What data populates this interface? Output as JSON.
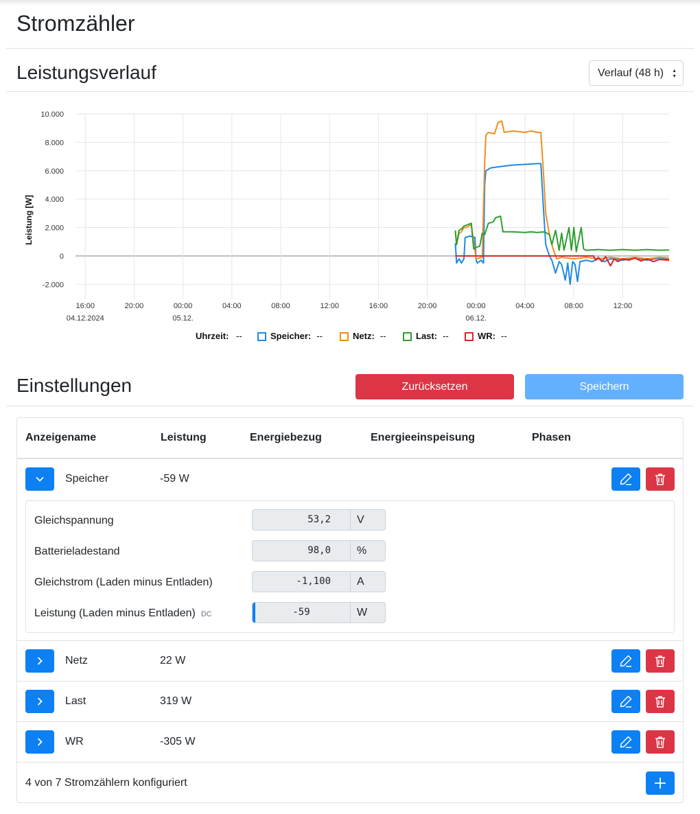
{
  "page": {
    "title": "Stromzähler"
  },
  "history": {
    "title": "Leistungsverlauf",
    "range_select": {
      "value": "Verlauf (48 h)"
    }
  },
  "chart_data": {
    "type": "line",
    "xlabel": "",
    "ylabel": "Leistung [W]",
    "ylim": [
      -3000,
      10000
    ],
    "x_ticks": [
      {
        "t": 0,
        "label": "16:00",
        "sub": "04.12.2024"
      },
      {
        "t": 4,
        "label": "20:00",
        "sub": ""
      },
      {
        "t": 8,
        "label": "00:00",
        "sub": "05.12."
      },
      {
        "t": 12,
        "label": "04:00",
        "sub": ""
      },
      {
        "t": 16,
        "label": "08:00",
        "sub": ""
      },
      {
        "t": 20,
        "label": "12:00",
        "sub": ""
      },
      {
        "t": 24,
        "label": "16:00",
        "sub": ""
      },
      {
        "t": 28,
        "label": "20:00",
        "sub": ""
      },
      {
        "t": 32,
        "label": "00:00",
        "sub": "06.12."
      },
      {
        "t": 36,
        "label": "04:00",
        "sub": ""
      },
      {
        "t": 40,
        "label": "08:00",
        "sub": ""
      },
      {
        "t": 44,
        "label": "12:00",
        "sub": ""
      }
    ],
    "xlim": [
      -0.8,
      47.8
    ],
    "y_ticks": [
      {
        "v": 10000,
        "label": "10.000"
      },
      {
        "v": 8000,
        "label": "8.000"
      },
      {
        "v": 6000,
        "label": "6.000"
      },
      {
        "v": 4000,
        "label": "4.000"
      },
      {
        "v": 2000,
        "label": "2.000"
      },
      {
        "v": 0,
        "label": "0"
      },
      {
        "v": -2000,
        "label": "-2.000"
      }
    ],
    "grid": true,
    "legend_position": "bottom",
    "legend_time": {
      "label": "Uhrzeit:",
      "value": "--"
    },
    "series": [
      {
        "name": "Speicher",
        "color": "#1e88e5",
        "legend_value": "--",
        "points": [
          [
            30.3,
            900
          ],
          [
            30.4,
            -500
          ],
          [
            30.6,
            -200
          ],
          [
            30.8,
            -500
          ],
          [
            31.0,
            -200
          ],
          [
            31.1,
            1300
          ],
          [
            31.5,
            1400
          ],
          [
            31.9,
            1300
          ],
          [
            32.0,
            -300
          ],
          [
            32.1,
            -500
          ],
          [
            32.4,
            -300
          ],
          [
            32.6,
            -500
          ],
          [
            32.7,
            5000
          ],
          [
            32.8,
            6000
          ],
          [
            33.2,
            6200
          ],
          [
            34.0,
            6300
          ],
          [
            35.0,
            6400
          ],
          [
            36.0,
            6450
          ],
          [
            37.0,
            6500
          ],
          [
            37.3,
            6500
          ],
          [
            37.5,
            3500
          ],
          [
            37.7,
            800
          ],
          [
            38.0,
            0
          ],
          [
            38.2,
            -300
          ],
          [
            38.5,
            -1200
          ],
          [
            38.8,
            -400
          ],
          [
            39.0,
            -600
          ],
          [
            39.3,
            -1700
          ],
          [
            39.5,
            -500
          ],
          [
            39.7,
            -2000
          ],
          [
            39.9,
            -400
          ],
          [
            40.1,
            -600
          ],
          [
            40.3,
            -1800
          ],
          [
            40.5,
            -400
          ],
          [
            41.0,
            -300
          ],
          [
            41.5,
            -400
          ],
          [
            42.0,
            -200
          ],
          [
            42.5,
            -400
          ],
          [
            43.0,
            -200
          ],
          [
            44.0,
            -300
          ],
          [
            45.0,
            -150
          ],
          [
            46.0,
            -300
          ],
          [
            47.0,
            -150
          ],
          [
            47.8,
            -250
          ]
        ]
      },
      {
        "name": "Netz",
        "color": "#f28c1e",
        "legend_value": "--",
        "points": [
          [
            30.3,
            1700
          ],
          [
            30.4,
            800
          ],
          [
            30.6,
            1600
          ],
          [
            30.8,
            1700
          ],
          [
            31.0,
            2000
          ],
          [
            31.2,
            2000
          ],
          [
            31.6,
            2200
          ],
          [
            32.0,
            -200
          ],
          [
            32.5,
            -100
          ],
          [
            32.7,
            6500
          ],
          [
            32.8,
            8500
          ],
          [
            33.0,
            8700
          ],
          [
            33.5,
            8600
          ],
          [
            33.8,
            9400
          ],
          [
            34.1,
            9500
          ],
          [
            34.3,
            8700
          ],
          [
            35.0,
            8800
          ],
          [
            36.0,
            8700
          ],
          [
            36.5,
            8800
          ],
          [
            37.0,
            8700
          ],
          [
            37.3,
            8700
          ],
          [
            37.5,
            6000
          ],
          [
            37.7,
            3000
          ],
          [
            38.0,
            1500
          ],
          [
            38.3,
            500
          ],
          [
            38.6,
            -200
          ],
          [
            39.0,
            -100
          ],
          [
            40.0,
            -200
          ],
          [
            41.0,
            -100
          ],
          [
            42.0,
            -200
          ],
          [
            43.0,
            -100
          ],
          [
            44.0,
            -200
          ],
          [
            45.0,
            -100
          ],
          [
            46.0,
            -200
          ],
          [
            47.0,
            -100
          ],
          [
            47.8,
            -150
          ]
        ]
      },
      {
        "name": "Last",
        "color": "#2ca02c",
        "legend_value": "--",
        "points": [
          [
            30.3,
            1800
          ],
          [
            30.4,
            800
          ],
          [
            30.6,
            1800
          ],
          [
            30.8,
            1900
          ],
          [
            31.0,
            2100
          ],
          [
            31.3,
            2200
          ],
          [
            31.6,
            2300
          ],
          [
            31.8,
            500
          ],
          [
            32.0,
            600
          ],
          [
            32.3,
            700
          ],
          [
            32.5,
            1600
          ],
          [
            32.7,
            1500
          ],
          [
            33.0,
            2300
          ],
          [
            33.4,
            2400
          ],
          [
            33.6,
            2700
          ],
          [
            34.0,
            2800
          ],
          [
            34.2,
            1700
          ],
          [
            35.0,
            1700
          ],
          [
            36.0,
            1650
          ],
          [
            36.5,
            1700
          ],
          [
            37.0,
            1650
          ],
          [
            37.6,
            1700
          ],
          [
            38.0,
            1500
          ],
          [
            38.2,
            800
          ],
          [
            38.5,
            1800
          ],
          [
            38.8,
            400
          ],
          [
            39.0,
            1600
          ],
          [
            39.2,
            400
          ],
          [
            39.6,
            2000
          ],
          [
            39.8,
            400
          ],
          [
            40.0,
            2000
          ],
          [
            40.2,
            300
          ],
          [
            40.6,
            2000
          ],
          [
            40.8,
            500
          ],
          [
            41.0,
            400
          ],
          [
            42.0,
            450
          ],
          [
            43.0,
            400
          ],
          [
            44.0,
            450
          ],
          [
            45.0,
            400
          ],
          [
            46.0,
            450
          ],
          [
            47.0,
            400
          ],
          [
            47.8,
            420
          ]
        ]
      },
      {
        "name": "WR",
        "color": "#d62728",
        "legend_value": "--",
        "points": [
          [
            30.3,
            0
          ],
          [
            31.0,
            0
          ],
          [
            32.0,
            0
          ],
          [
            33.0,
            0
          ],
          [
            34.0,
            0
          ],
          [
            35.0,
            0
          ],
          [
            36.0,
            0
          ],
          [
            37.0,
            0
          ],
          [
            38.0,
            0
          ],
          [
            39.0,
            0
          ],
          [
            40.0,
            0
          ],
          [
            41.0,
            0
          ],
          [
            41.6,
            0
          ],
          [
            41.8,
            -300
          ],
          [
            42.0,
            -100
          ],
          [
            42.3,
            -400
          ],
          [
            42.6,
            -50
          ],
          [
            43.0,
            -700
          ],
          [
            43.3,
            -200
          ],
          [
            43.6,
            -400
          ],
          [
            44.0,
            -200
          ],
          [
            44.5,
            -300
          ],
          [
            45.0,
            -150
          ],
          [
            45.5,
            -350
          ],
          [
            46.0,
            -200
          ],
          [
            46.5,
            -400
          ],
          [
            47.0,
            -250
          ],
          [
            47.8,
            -300
          ]
        ]
      }
    ]
  },
  "settings": {
    "title": "Einstellungen",
    "reset_label": "Zurücksetzen",
    "save_label": "Speichern"
  },
  "table": {
    "columns": [
      "Anzeigename",
      "Leistung",
      "Energiebezug",
      "Energieeinspeisung",
      "Phasen"
    ],
    "rows": [
      {
        "name": "Speicher",
        "power": "-59 W",
        "expanded": true,
        "details": [
          {
            "label": "Gleichspannung",
            "value": "53,2",
            "unit": "V"
          },
          {
            "label": "Batterieladestand",
            "value": "98,0",
            "unit": "%"
          },
          {
            "label": "Gleichstrom (Laden minus Entladen)",
            "value": "-1,100",
            "unit": "A"
          },
          {
            "label": "Leistung (Laden minus Entladen)",
            "tag": "DC",
            "value": "-59",
            "unit": "W"
          }
        ]
      },
      {
        "name": "Netz",
        "power": "22 W",
        "expanded": false
      },
      {
        "name": "Last",
        "power": "319 W",
        "expanded": false
      },
      {
        "name": "WR",
        "power": "-305 W",
        "expanded": false
      }
    ],
    "footer": "4 von 7 Stromzählern konfiguriert"
  },
  "icons": {
    "expand_open": "chevron-down-icon",
    "expand_closed": "chevron-right-icon",
    "edit": "pencil-icon",
    "delete": "trash-icon",
    "add": "plus-icon"
  }
}
